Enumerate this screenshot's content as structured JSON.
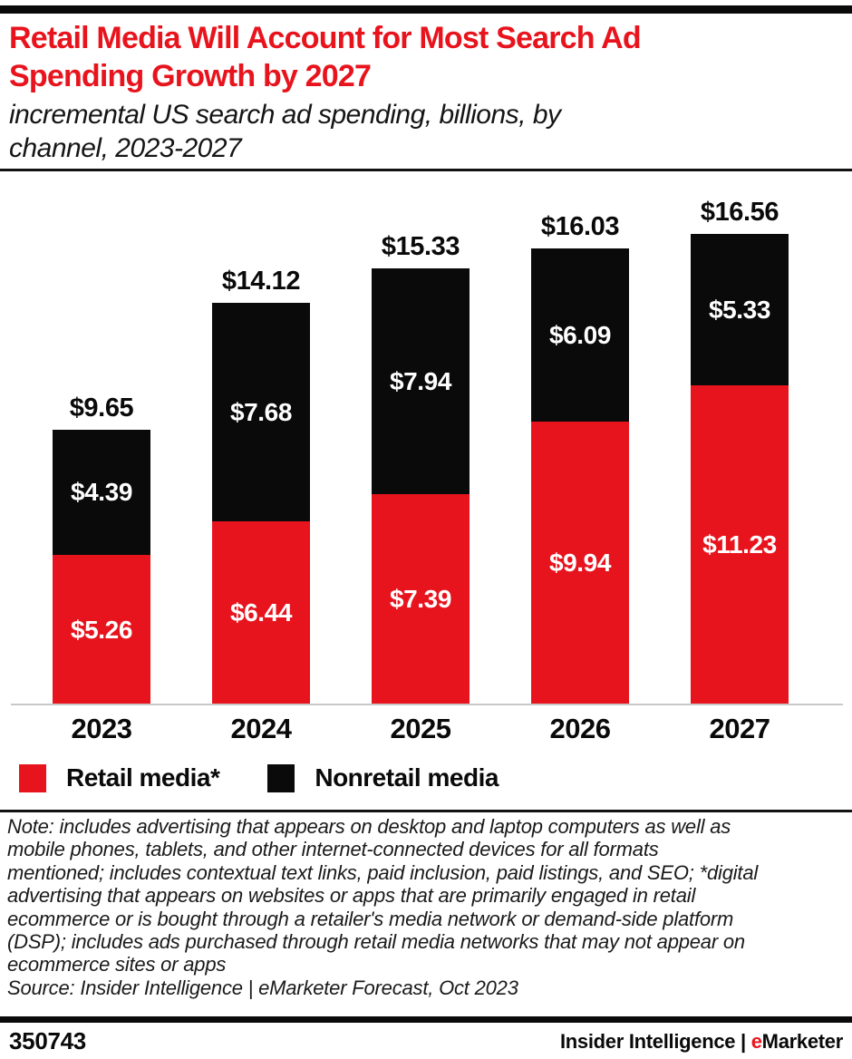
{
  "header": {
    "title_lines": [
      "Retail Media Will Account for Most Search Ad",
      "Spending Growth by 2027"
    ],
    "subtitle_lines": [
      "incremental US search ad spending, billions, by",
      "channel, 2023-2027"
    ]
  },
  "chart_data": {
    "type": "bar",
    "stacked": true,
    "title": "Retail Media Will Account for Most Search Ad Spending Growth by 2027",
    "subtitle": "incremental US search ad spending, billions, by channel, 2023-2027",
    "categories": [
      "2023",
      "2024",
      "2025",
      "2026",
      "2027"
    ],
    "series": [
      {
        "name": "Retail media*",
        "color": "#e8141d",
        "values": [
          5.26,
          6.44,
          7.39,
          9.94,
          11.23
        ]
      },
      {
        "name": "Nonretail media",
        "color": "#0a0a0a",
        "values": [
          4.39,
          7.68,
          7.94,
          6.09,
          5.33
        ]
      }
    ],
    "totals": [
      9.65,
      14.12,
      15.33,
      16.03,
      16.56
    ],
    "total_labels": [
      "$9.65",
      "$14.12",
      "$15.33",
      "$16.03",
      "$16.56"
    ],
    "segment_labels": {
      "retail": [
        "$5.26",
        "$6.44",
        "$7.39",
        "$9.94",
        "$11.23"
      ],
      "nonretail": [
        "$4.39",
        "$7.68",
        "$7.94",
        "$6.09",
        "$5.33"
      ]
    },
    "xlabel": "",
    "ylabel": "incremental US search ad spending (billions)",
    "ylim": [
      0,
      17
    ],
    "grid": false,
    "legend_position": "bottom"
  },
  "legend": {
    "items": [
      {
        "label": "Retail media*",
        "color": "#e8141d"
      },
      {
        "label": "Nonretail media",
        "color": "#0a0a0a"
      }
    ]
  },
  "note": {
    "lines": [
      "Note: includes advertising that appears on desktop and laptop computers as well as",
      "mobile phones, tablets, and other internet-connected devices for all formats",
      "mentioned; includes contextual text links, paid inclusion, paid listings, and SEO; *digital",
      "advertising that appears on websites or apps that are primarily engaged in retail",
      "ecommerce or is bought through a retailer's media network or demand-side platform",
      "(DSP); includes ads purchased through retail media networks that may not appear on",
      "ecommerce sites or apps"
    ],
    "source": "Source: Insider Intelligence | eMarketer Forecast, Oct 2023"
  },
  "footer": {
    "chart_id": "350743",
    "brand_prefix": "Insider Intelligence | ",
    "brand_e": "e",
    "brand_suffix": "Marketer"
  },
  "colors": {
    "accent_red": "#e8141d",
    "bar_black": "#0a0a0a",
    "axis_line": "#c8c8c8"
  }
}
